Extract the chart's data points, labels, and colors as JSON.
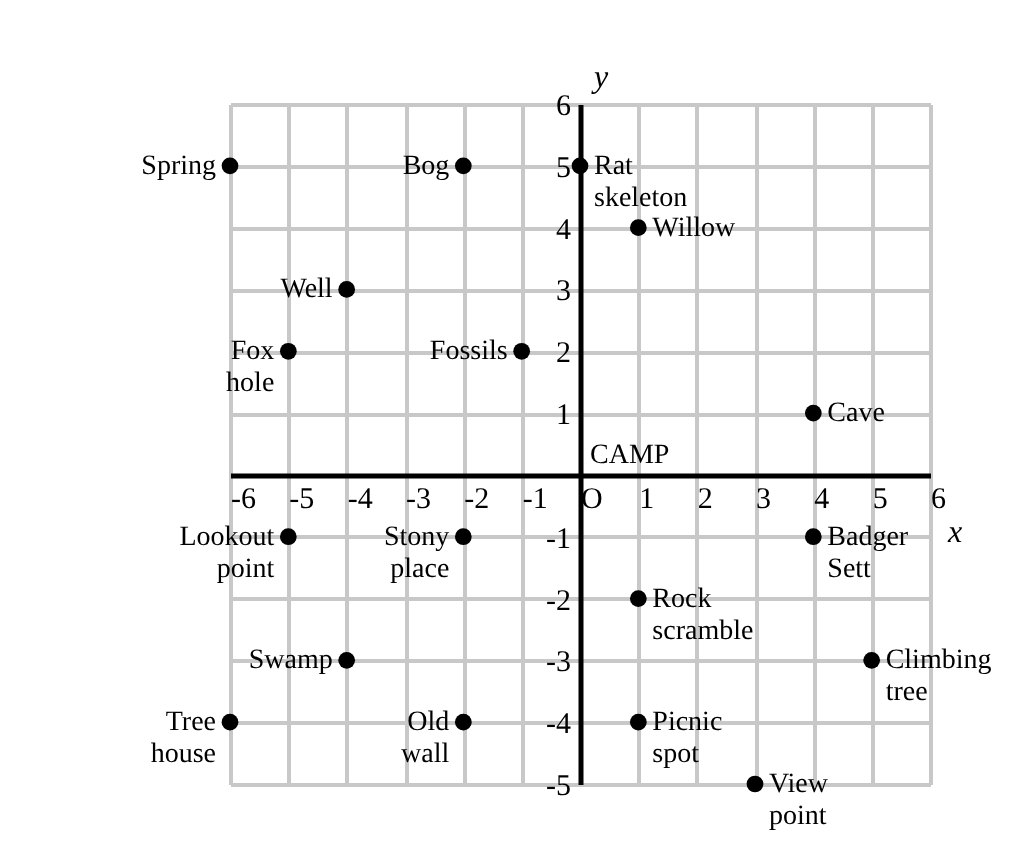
{
  "chart_data": {
    "type": "scatter",
    "xlabel": "x",
    "ylabel": "y",
    "x": [
      -6,
      -2,
      0,
      1,
      -4,
      -1,
      -5,
      4,
      -5,
      -2,
      4,
      1,
      -4,
      5,
      -6,
      -2,
      1,
      3
    ],
    "values": [
      5,
      5,
      5,
      4,
      3,
      2,
      2,
      1,
      -1,
      -1,
      -1,
      -2,
      -3,
      -3,
      -4,
      -4,
      -4,
      -5
    ],
    "color": "#000000",
    "marker": "circle",
    "xlim": [
      -6,
      6
    ],
    "xticks": [
      -6,
      -5,
      -4,
      -3,
      -2,
      -1,
      {
        "value": 0,
        "label": "O"
      },
      1,
      2,
      3,
      4,
      5,
      6
    ],
    "ylim": [
      -5,
      6
    ],
    "yticks": [
      -5,
      -4,
      -3,
      -2,
      -1,
      1,
      2,
      3,
      4,
      5,
      6
    ],
    "grid": true,
    "annotations": [
      {
        "text": "Spring",
        "x": -6,
        "y": 5
      },
      {
        "text": "Bog",
        "x": -2,
        "y": 5
      },
      {
        "text": "Rat skeleton",
        "x": 0,
        "y": 5
      },
      {
        "text": "Willow",
        "x": 1,
        "y": 4
      },
      {
        "text": "Well",
        "x": -4,
        "y": 3
      },
      {
        "text": "Fossils",
        "x": -1,
        "y": 2
      },
      {
        "text": "Fox hole",
        "x": -5,
        "y": 2
      },
      {
        "text": "Cave",
        "x": 4,
        "y": 1
      },
      "CAMP",
      {
        "text": "Lookout point",
        "x": -5,
        "y": -1
      },
      {
        "text": "Stony place",
        "x": -2,
        "y": -1
      },
      {
        "text": "Badger Sett",
        "x": 4,
        "y": -1
      },
      {
        "text": "Rock scramble",
        "x": 1,
        "y": -2
      },
      {
        "text": "Swamp",
        "x": -4,
        "y": -3
      },
      {
        "text": "Climbing tree",
        "x": 5,
        "y": -3
      },
      {
        "text": "Tree house",
        "x": -6,
        "y": -4
      },
      {
        "text": "Old wall",
        "x": -2,
        "y": -4
      },
      {
        "text": "Picnic spot",
        "x": 1,
        "y": -4
      },
      {
        "text": "View point",
        "x": 3,
        "y": -5
      }
    ]
  }
}
